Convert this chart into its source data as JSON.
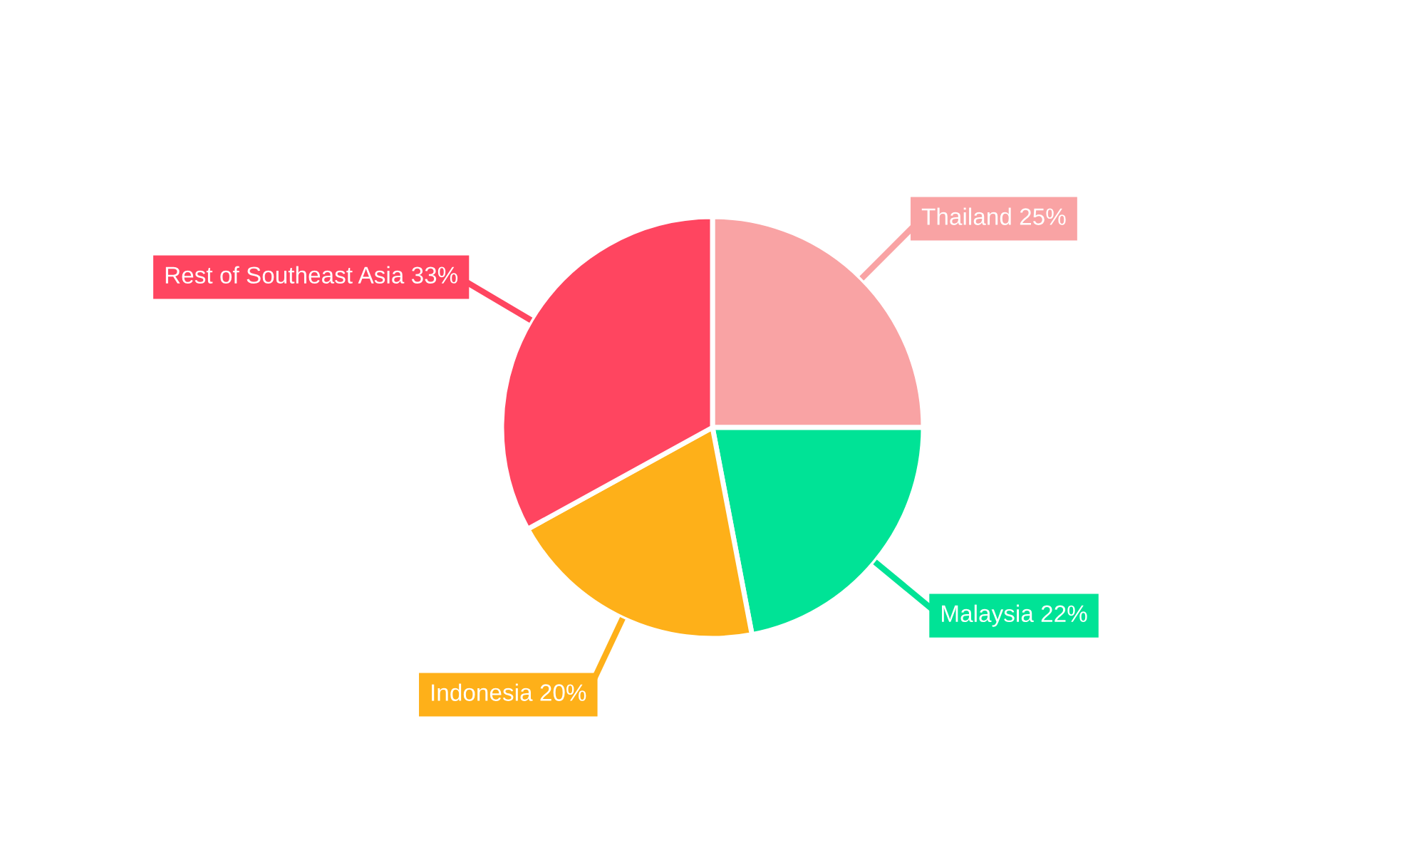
{
  "chart_data": {
    "type": "pie",
    "categories": [
      "Thailand",
      "Malaysia",
      "Indonesia",
      "Rest of Southeast Asia"
    ],
    "values": [
      25,
      22,
      20,
      33
    ],
    "value_labels": [
      "25%",
      "22%",
      "20%",
      "33%"
    ],
    "colors": [
      "#f9a3a4",
      "#00e396",
      "#feb019",
      "#ff4560"
    ],
    "legend": false
  }
}
